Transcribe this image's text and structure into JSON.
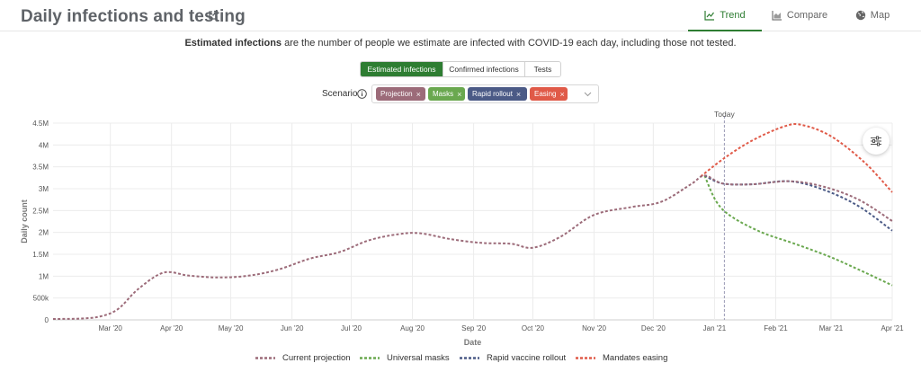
{
  "header": {
    "title": "Daily infections and testing",
    "tabs": [
      {
        "label": "Trend",
        "icon": "line-chart-icon",
        "active": true
      },
      {
        "label": "Compare",
        "icon": "area-chart-icon",
        "active": false
      },
      {
        "label": "Map",
        "icon": "globe-icon",
        "active": false
      }
    ]
  },
  "description": {
    "bold": "Estimated infections",
    "rest": " are the number of people we estimate are infected with COVID-19 each day, including those not tested."
  },
  "metric_tabs": [
    {
      "label": "Estimated infections",
      "active": true
    },
    {
      "label": "Confirmed infections",
      "active": false
    },
    {
      "label": "Tests",
      "active": false
    }
  ],
  "scenario": {
    "label": "Scenario",
    "chips": [
      {
        "label": "Projection",
        "color": "#9c6b79"
      },
      {
        "label": "Masks",
        "color": "#6aa84f"
      },
      {
        "label": "Rapid rollout",
        "color": "#4b5a86"
      },
      {
        "label": "Easing",
        "color": "#e05a48"
      }
    ]
  },
  "colors": {
    "accent": "#2e7d32",
    "projection": "#9c6b79",
    "masks": "#6aa84f",
    "rapid": "#4b5a86",
    "easing": "#e05a48",
    "grid": "#ececec"
  },
  "chart_data": {
    "type": "line",
    "title": "",
    "xlabel": "Date",
    "ylabel": "Daily count",
    "ylim": [
      0,
      4500000
    ],
    "yticks": [
      0,
      500000,
      1000000,
      1500000,
      2000000,
      2500000,
      3000000,
      3500000,
      4000000,
      4500000
    ],
    "ytick_labels": [
      "0",
      "500k",
      "1M",
      "1.5M",
      "2M",
      "2.5M",
      "3M",
      "3.5M",
      "4M",
      "4.5M"
    ],
    "xlim": [
      "2020-02-01",
      "2021-04-01"
    ],
    "xticks": [
      "2020-03-01",
      "2020-04-01",
      "2020-05-01",
      "2020-06-01",
      "2020-07-01",
      "2020-08-01",
      "2020-09-01",
      "2020-10-01",
      "2020-11-01",
      "2020-12-01",
      "2021-01-01",
      "2021-02-01",
      "2021-03-01",
      "2021-04-01"
    ],
    "xtick_labels": [
      "Mar '20",
      "Apr '20",
      "May '20",
      "Jun '20",
      "Jul '20",
      "Aug '20",
      "Sep '20",
      "Oct '20",
      "Nov '20",
      "Dec '20",
      "Jan '21",
      "Feb '21",
      "Mar '21",
      "Apr '21"
    ],
    "today": {
      "date": "2021-01-06",
      "label": "Today"
    },
    "grid": true,
    "legend_position": "bottom",
    "series": [
      {
        "name": "Current projection",
        "color": "#9c6b79",
        "points": [
          [
            "2020-02-01",
            20000
          ],
          [
            "2020-02-15",
            30000
          ],
          [
            "2020-02-25",
            80000
          ],
          [
            "2020-03-05",
            250000
          ],
          [
            "2020-03-15",
            700000
          ],
          [
            "2020-03-28",
            1080000
          ],
          [
            "2020-04-10",
            1010000
          ],
          [
            "2020-04-25",
            970000
          ],
          [
            "2020-05-10",
            1010000
          ],
          [
            "2020-05-25",
            1150000
          ],
          [
            "2020-06-10",
            1400000
          ],
          [
            "2020-06-25",
            1550000
          ],
          [
            "2020-07-10",
            1820000
          ],
          [
            "2020-07-25",
            1960000
          ],
          [
            "2020-08-05",
            1980000
          ],
          [
            "2020-08-20",
            1850000
          ],
          [
            "2020-09-05",
            1760000
          ],
          [
            "2020-09-20",
            1740000
          ],
          [
            "2020-10-01",
            1650000
          ],
          [
            "2020-10-15",
            1900000
          ],
          [
            "2020-11-01",
            2400000
          ],
          [
            "2020-11-20",
            2580000
          ],
          [
            "2020-12-05",
            2700000
          ],
          [
            "2020-12-20",
            3100000
          ],
          [
            "2020-12-27",
            3300000
          ],
          [
            "2021-01-05",
            3120000
          ],
          [
            "2021-01-20",
            3100000
          ],
          [
            "2021-02-08",
            3170000
          ],
          [
            "2021-02-25",
            3050000
          ],
          [
            "2021-03-15",
            2750000
          ],
          [
            "2021-04-01",
            2260000
          ]
        ]
      },
      {
        "name": "Universal masks",
        "color": "#6aa84f",
        "points": [
          [
            "2020-12-27",
            3300000
          ],
          [
            "2021-01-02",
            2700000
          ],
          [
            "2021-01-10",
            2350000
          ],
          [
            "2021-01-25",
            2000000
          ],
          [
            "2021-02-10",
            1750000
          ],
          [
            "2021-02-28",
            1450000
          ],
          [
            "2021-03-15",
            1150000
          ],
          [
            "2021-04-01",
            790000
          ]
        ]
      },
      {
        "name": "Rapid vaccine rollout",
        "color": "#4b5a86",
        "points": [
          [
            "2020-12-27",
            3300000
          ],
          [
            "2021-01-05",
            3120000
          ],
          [
            "2021-01-20",
            3100000
          ],
          [
            "2021-02-08",
            3170000
          ],
          [
            "2021-02-25",
            2980000
          ],
          [
            "2021-03-15",
            2600000
          ],
          [
            "2021-04-01",
            2040000
          ]
        ]
      },
      {
        "name": "Mandates easing",
        "color": "#e05a48",
        "points": [
          [
            "2020-12-25",
            3280000
          ],
          [
            "2021-01-06",
            3700000
          ],
          [
            "2021-01-20",
            4100000
          ],
          [
            "2021-02-05",
            4420000
          ],
          [
            "2021-02-14",
            4460000
          ],
          [
            "2021-03-01",
            4200000
          ],
          [
            "2021-03-18",
            3600000
          ],
          [
            "2021-04-01",
            2920000
          ]
        ]
      }
    ]
  }
}
